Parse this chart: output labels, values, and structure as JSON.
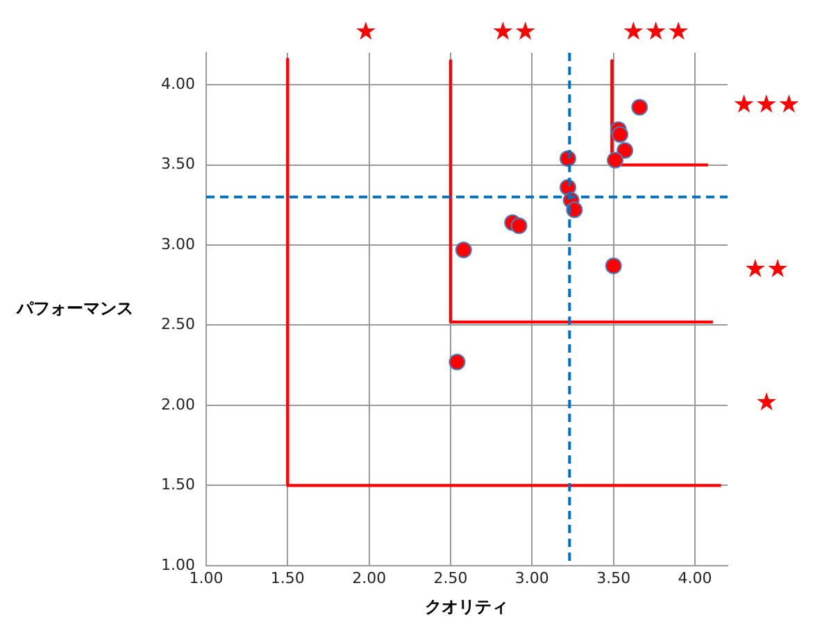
{
  "chart_data": {
    "type": "scatter",
    "xlabel": "クオリティ",
    "ylabel": "パフォーマンス",
    "xlim": [
      1,
      4.2
    ],
    "ylim": [
      1,
      4.2
    ],
    "xticks": [
      {
        "value": 1,
        "label": "1.00"
      },
      {
        "value": 1.5,
        "label": "1.50"
      },
      {
        "value": 2,
        "label": "2.00"
      },
      {
        "value": 2.5,
        "label": "2.50"
      },
      {
        "value": 3,
        "label": "3.00"
      },
      {
        "value": 3.5,
        "label": "3.50"
      },
      {
        "value": 4,
        "label": "4.00"
      }
    ],
    "yticks": [
      {
        "value": 1,
        "label": "1.00"
      },
      {
        "value": 1.5,
        "label": "1.50"
      },
      {
        "value": 2,
        "label": "2.00"
      },
      {
        "value": 2.5,
        "label": "2.50"
      },
      {
        "value": 3,
        "label": "3.00"
      },
      {
        "value": 3.5,
        "label": "3.50"
      },
      {
        "value": 4,
        "label": "4.00"
      }
    ],
    "grid": true,
    "legend": false,
    "marker": "circle",
    "series": [
      {
        "color": "#ff0000",
        "x": [
          3.66,
          3.53,
          3.54,
          3.57,
          3.51,
          3.22,
          3.22,
          3.24,
          3.26,
          2.88,
          2.92,
          2.58,
          3.5,
          2.54
        ],
        "values": [
          3.86,
          3.72,
          3.69,
          3.59,
          3.53,
          3.54,
          3.36,
          3.28,
          3.22,
          3.14,
          3.12,
          2.97,
          2.87,
          2.27
        ]
      },
      {
        "type": "line",
        "color": "#ff0000",
        "marker": "none",
        "x": [
          1.5,
          1.5,
          4.16
        ],
        "values": [
          4.16,
          1.5,
          1.5
        ]
      },
      {
        "type": "line",
        "color": "#ff0000",
        "marker": "none",
        "x": [
          2.5,
          2.5,
          4.11
        ],
        "values": [
          4.15,
          2.52,
          2.52
        ]
      },
      {
        "type": "line",
        "color": "#ff0000",
        "marker": "none",
        "x": [
          3.49,
          3.49,
          4.08
        ],
        "values": [
          4.15,
          3.5,
          3.5
        ]
      }
    ],
    "ref_lines": [
      {
        "axis": "x",
        "value": 3.23,
        "color": "#0070c0",
        "line_style": "dashed"
      },
      {
        "axis": "y",
        "value": 3.3,
        "color": "#0070c0",
        "line_style": "dashed"
      }
    ],
    "annotations": [
      "★",
      "★★",
      "★★★",
      "★★★",
      "★★",
      "★"
    ]
  }
}
